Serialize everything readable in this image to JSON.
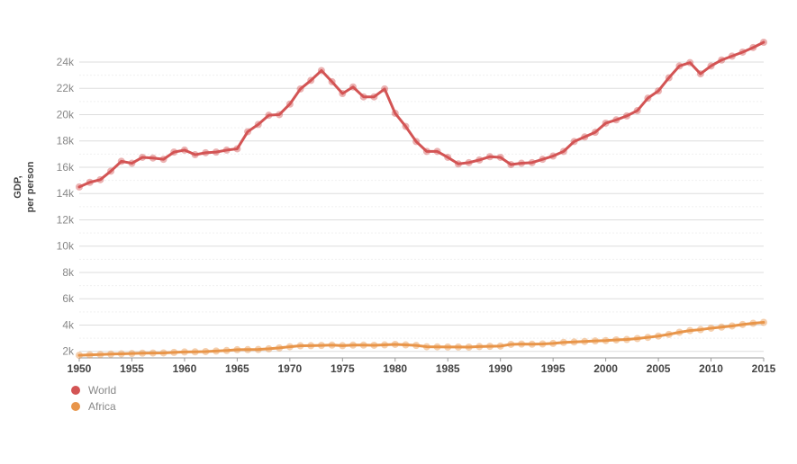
{
  "chart_data": {
    "type": "line",
    "ylabel_lines": [
      "GDP,",
      "per person"
    ],
    "xlim": [
      1950,
      2015
    ],
    "ylim": [
      1500,
      25500
    ],
    "y_ticks": [
      {
        "value": 2000,
        "label": "2k"
      },
      {
        "value": 4000,
        "label": "4k"
      },
      {
        "value": 6000,
        "label": "6k"
      },
      {
        "value": 8000,
        "label": "8k"
      },
      {
        "value": 10000,
        "label": "10k"
      },
      {
        "value": 12000,
        "label": "12k"
      },
      {
        "value": 14000,
        "label": "14k"
      },
      {
        "value": 16000,
        "label": "16k"
      },
      {
        "value": 18000,
        "label": "18k"
      },
      {
        "value": 20000,
        "label": "20k"
      },
      {
        "value": 22000,
        "label": "22k"
      },
      {
        "value": 24000,
        "label": "24k"
      }
    ],
    "x_ticks": [
      1950,
      1955,
      1960,
      1965,
      1970,
      1975,
      1980,
      1985,
      1990,
      1995,
      2000,
      2005,
      2010,
      2015
    ],
    "grid": true,
    "legend_position": "bottom-left",
    "x": [
      1950,
      1951,
      1952,
      1953,
      1954,
      1955,
      1956,
      1957,
      1958,
      1959,
      1960,
      1961,
      1962,
      1963,
      1964,
      1965,
      1966,
      1967,
      1968,
      1969,
      1970,
      1971,
      1972,
      1973,
      1974,
      1975,
      1976,
      1977,
      1978,
      1979,
      1980,
      1981,
      1982,
      1983,
      1984,
      1985,
      1986,
      1987,
      1988,
      1989,
      1990,
      1991,
      1992,
      1993,
      1994,
      1995,
      1996,
      1997,
      1998,
      1999,
      2000,
      2001,
      2002,
      2003,
      2004,
      2005,
      2006,
      2007,
      2008,
      2009,
      2010,
      2011,
      2012,
      2013,
      2014,
      2015
    ],
    "series": [
      {
        "name": "World",
        "color": "#d35454",
        "values": [
          14500,
          14850,
          15050,
          15700,
          16450,
          16300,
          16750,
          16700,
          16600,
          17150,
          17300,
          16950,
          17100,
          17150,
          17300,
          17400,
          18700,
          19250,
          19950,
          20000,
          20800,
          21950,
          22600,
          23350,
          22500,
          21600,
          22100,
          21350,
          21350,
          21950,
          20100,
          19100,
          17950,
          17200,
          17200,
          16750,
          16250,
          16350,
          16550,
          16800,
          16750,
          16200,
          16300,
          16350,
          16600,
          16850,
          17200,
          17950,
          18300,
          18650,
          19350,
          19600,
          19900,
          20300,
          21250,
          21800,
          22800,
          23700,
          23950,
          23100,
          23700,
          24150,
          24450,
          24750,
          25100,
          25500
        ]
      },
      {
        "name": "Africa",
        "color": "#e8954a",
        "values": [
          1700,
          1730,
          1760,
          1790,
          1810,
          1830,
          1860,
          1870,
          1880,
          1920,
          1950,
          1960,
          1980,
          2020,
          2060,
          2120,
          2130,
          2140,
          2190,
          2260,
          2350,
          2420,
          2430,
          2450,
          2470,
          2430,
          2470,
          2470,
          2460,
          2490,
          2530,
          2490,
          2450,
          2350,
          2340,
          2330,
          2330,
          2320,
          2360,
          2380,
          2400,
          2530,
          2550,
          2540,
          2560,
          2600,
          2680,
          2710,
          2750,
          2790,
          2820,
          2870,
          2900,
          2970,
          3060,
          3160,
          3290,
          3450,
          3580,
          3650,
          3760,
          3840,
          3930,
          4040,
          4130,
          4200
        ]
      }
    ]
  }
}
